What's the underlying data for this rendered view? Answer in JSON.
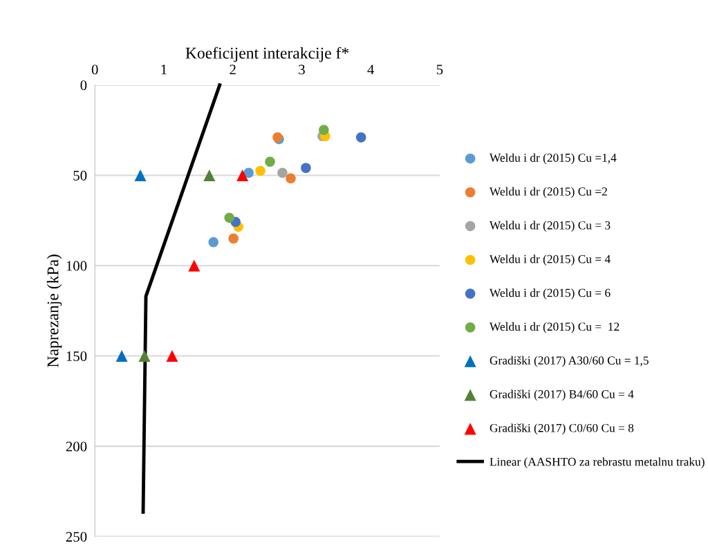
{
  "chart_data": {
    "type": "scatter",
    "xlabel": "Koeficijent interakcije f*",
    "ylabel": "Naprezanje (kPa)",
    "xlim": [
      0,
      5
    ],
    "xticks": [
      0,
      1,
      2,
      3,
      4,
      5
    ],
    "ylim": [
      250,
      0
    ],
    "yticks": [
      0,
      50,
      100,
      150,
      200,
      250
    ],
    "grid": "y",
    "legend": "right",
    "series": [
      {
        "name": "Weldu i dr (2015) Cu =1,4",
        "color": "#5b9bd5",
        "marker": "circle",
        "x": [
          2.67,
          2.23,
          1.72
        ],
        "values": [
          30,
          48.6,
          87
        ]
      },
      {
        "name": "Weldu i dr (2015) Cu =2",
        "color": "#ed7d31",
        "marker": "circle",
        "x": [
          2.65,
          2.84,
          2.01
        ],
        "values": [
          29,
          51.7,
          85
        ]
      },
      {
        "name": "Weldu i dr (2015) Cu = 3",
        "color": "#a5a5a5",
        "marker": "circle",
        "x": [
          3.3,
          2.72
        ],
        "values": [
          28.3,
          48.6
        ]
      },
      {
        "name": "Weldu i dr (2015) Cu = 4",
        "color": "#ffc000",
        "marker": "circle",
        "x": [
          3.34,
          2.4,
          2.08
        ],
        "values": [
          28.3,
          47.5,
          78.5
        ]
      },
      {
        "name": "Weldu i dr (2015) Cu = 6",
        "color": "#4472c4",
        "marker": "circle",
        "x": [
          3.86,
          3.06,
          2.04
        ],
        "values": [
          29,
          45.9,
          75.8
        ]
      },
      {
        "name": "Weldu i dr (2015) Cu =  12",
        "color": "#70ad47",
        "marker": "circle",
        "x": [
          3.32,
          2.54,
          1.95
        ],
        "values": [
          24.9,
          42.5,
          73.5
        ]
      },
      {
        "name": "Gradiški (2017) A30/60 Cu = 1,5",
        "color": "#0070c0",
        "marker": "triangle",
        "x": [
          0.66,
          0.39
        ],
        "values": [
          50,
          150
        ]
      },
      {
        "name": "Gradiški (2017) B4/60 Cu = 4",
        "color": "#548235",
        "marker": "triangle",
        "x": [
          1.66,
          0.72
        ],
        "values": [
          50,
          150
        ]
      },
      {
        "name": "Gradiški (2017) C0/60 Cu = 8",
        "color": "#ff0000",
        "marker": "triangle",
        "x": [
          2.14,
          1.44,
          1.12
        ],
        "values": [
          50,
          100,
          150
        ]
      },
      {
        "name": "Linear (AASHTO za rebrastu metalnu traku)",
        "type": "line",
        "color": "#000000",
        "marker": "none",
        "line_style": "solid",
        "x": [
          1.81,
          0.74,
          0.7
        ],
        "values": [
          0,
          117,
          236.5
        ]
      }
    ]
  }
}
